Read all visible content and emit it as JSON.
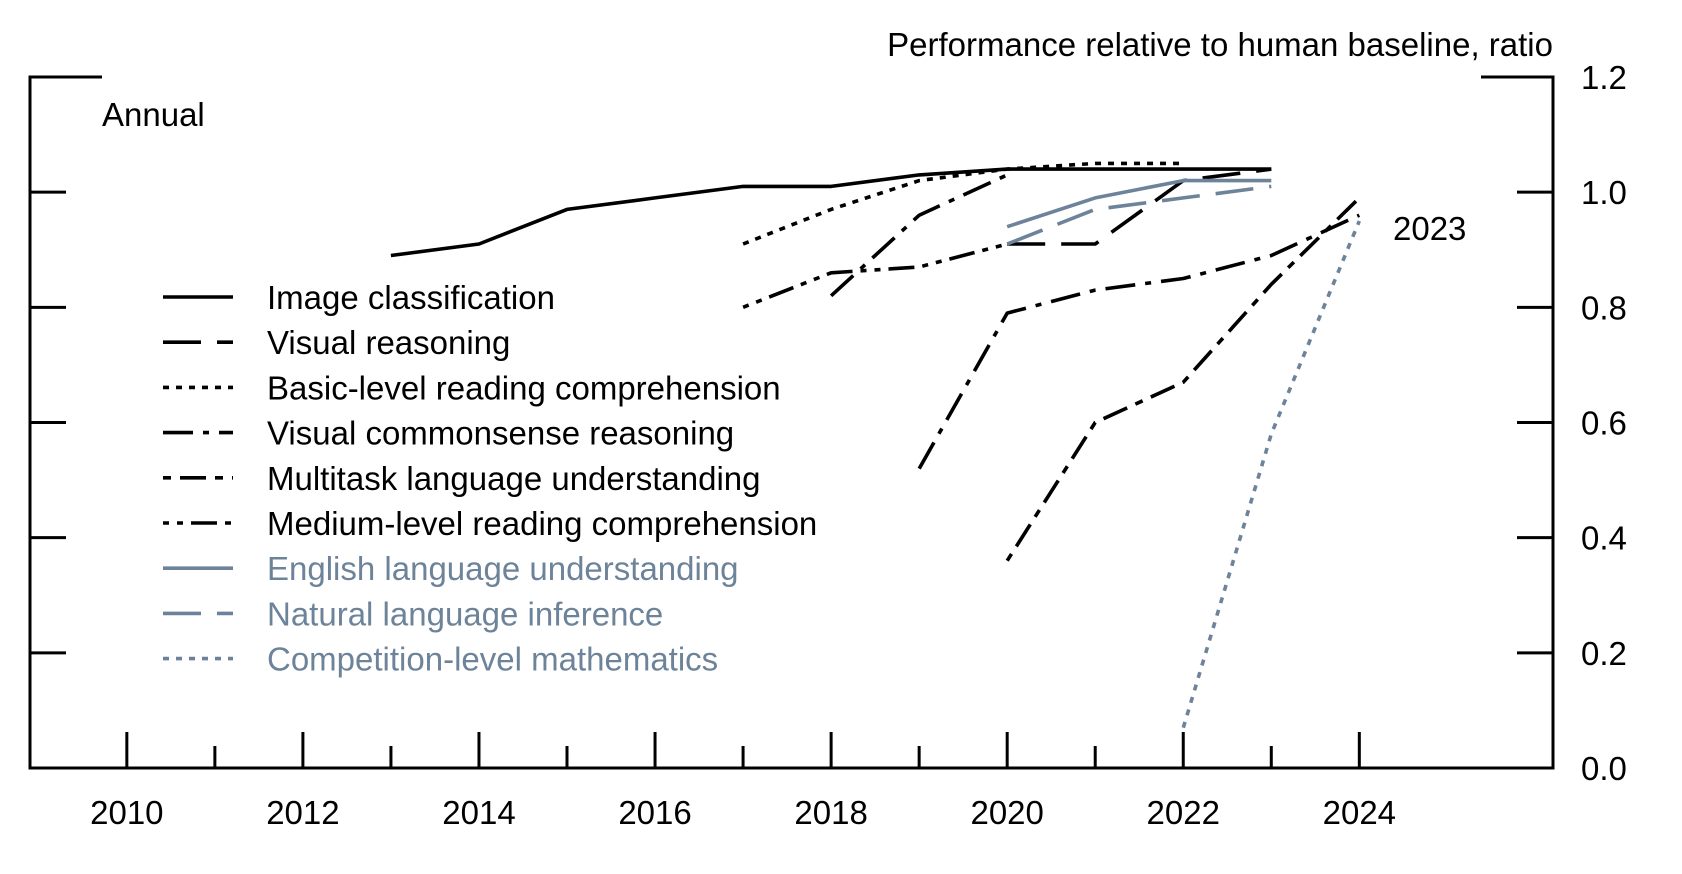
{
  "chart_data": {
    "type": "line",
    "title": "",
    "ylabel": "Performance relative to human baseline, ratio",
    "frequency_label": "Annual",
    "end_annotation": "2023",
    "xlim": [
      2008.9,
      2026.2
    ],
    "ylim": [
      0.0,
      1.2
    ],
    "x_ticks_major": [
      2010,
      2012,
      2014,
      2016,
      2018,
      2020,
      2022,
      2024
    ],
    "x_ticks_minor": [
      2011,
      2013,
      2015,
      2017,
      2019,
      2021,
      2023
    ],
    "y_ticks": [
      0.0,
      0.2,
      0.4,
      0.6,
      0.8,
      1.0,
      1.2
    ],
    "y_tick_labels": [
      "0.0",
      "0.2",
      "0.4",
      "0.6",
      "0.8",
      "1.0",
      "1.2"
    ],
    "x_tick_labels": [
      "2010",
      "2012",
      "2014",
      "2016",
      "2018",
      "2020",
      "2022",
      "2024"
    ],
    "legend_position": "left",
    "grid": false,
    "series": [
      {
        "name": "Image classification",
        "color": "#000000",
        "style": "solid",
        "x": [
          2013,
          2014,
          2015,
          2016,
          2017,
          2018,
          2019,
          2020,
          2021,
          2022,
          2023
        ],
        "y": [
          0.89,
          0.91,
          0.97,
          0.99,
          1.01,
          1.01,
          1.03,
          1.04,
          1.04,
          1.04,
          1.04
        ]
      },
      {
        "name": "Visual reasoning",
        "color": "#000000",
        "style": "longdash",
        "x": [
          2020,
          2021,
          2022,
          2023
        ],
        "y": [
          0.91,
          0.91,
          1.02,
          1.04
        ]
      },
      {
        "name": "Basic-level reading comprehension",
        "color": "#000000",
        "style": "dotted",
        "x": [
          2017,
          2018,
          2019,
          2020,
          2021,
          2022
        ],
        "y": [
          0.91,
          0.97,
          1.02,
          1.04,
          1.05,
          1.05
        ]
      },
      {
        "name": "Visual commonsense reasoning",
        "color": "#000000",
        "style": "dashdot",
        "x": [
          2019,
          2020,
          2021,
          2022,
          2023,
          2024
        ],
        "y": [
          0.52,
          0.79,
          0.83,
          0.85,
          0.89,
          0.96
        ]
      },
      {
        "name": "Multitask language understanding",
        "color": "#000000",
        "style": "dotdash",
        "x": [
          2020,
          2021,
          2022,
          2023,
          2024
        ],
        "y": [
          0.36,
          0.6,
          0.67,
          0.84,
          0.99
        ]
      },
      {
        "name": "Medium-level reading comprehension",
        "color": "#000000",
        "style": "dotdotdash",
        "x": [
          2017,
          2018,
          2019,
          2020
        ],
        "y": [
          0.8,
          0.86,
          0.87,
          0.91
        ]
      },
      {
        "name": "English language understanding",
        "color": "#6d8399",
        "style": "solid",
        "x": [
          2020,
          2021,
          2022,
          2023
        ],
        "y": [
          0.94,
          0.99,
          1.02,
          1.02
        ]
      },
      {
        "name": "Natural language inference",
        "color": "#6d8399",
        "style": "longdash",
        "x": [
          2020,
          2021,
          2022,
          2023
        ],
        "y": [
          0.91,
          0.97,
          0.99,
          1.01
        ]
      },
      {
        "name": "Competition-level mathematics",
        "color": "#6d8399",
        "style": "dotted",
        "x": [
          2022,
          2023,
          2024
        ],
        "y": [
          0.07,
          0.58,
          0.95
        ]
      }
    ],
    "secondary_series": [
      {
        "for": "Visual commonsense reasoning",
        "color": "#000000",
        "style": "dashdot",
        "x": [
          2018,
          2019,
          2020
        ],
        "y": [
          0.82,
          0.96,
          1.03
        ]
      }
    ]
  }
}
